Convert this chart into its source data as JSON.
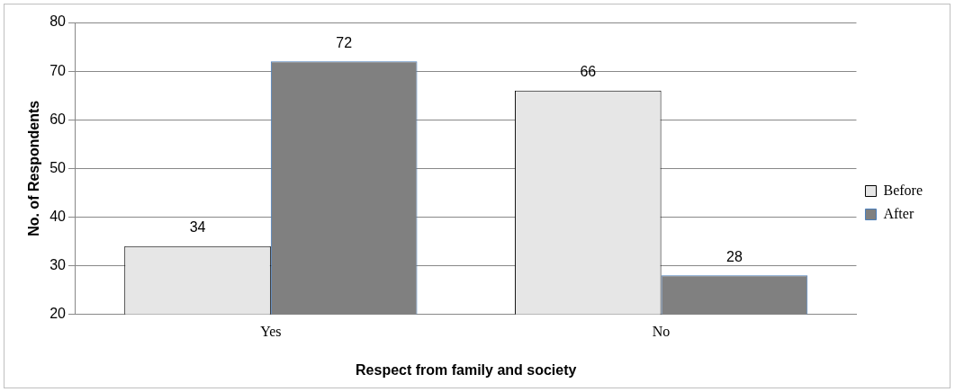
{
  "chart_data": {
    "type": "bar",
    "xlabel": "Respect from family and society",
    "ylabel": "No. of Respondents",
    "categories": [
      "Yes",
      "No"
    ],
    "series": [
      {
        "name": "Before",
        "color": "#e6e6e6",
        "values": [
          34,
          66
        ]
      },
      {
        "name": "After",
        "color": "#808080",
        "values": [
          72,
          28
        ]
      }
    ],
    "ylim": [
      20,
      80
    ],
    "yticks": [
      20,
      30,
      40,
      50,
      60,
      70,
      80
    ],
    "grid": "y",
    "legend": "right",
    "data_labels": true
  }
}
